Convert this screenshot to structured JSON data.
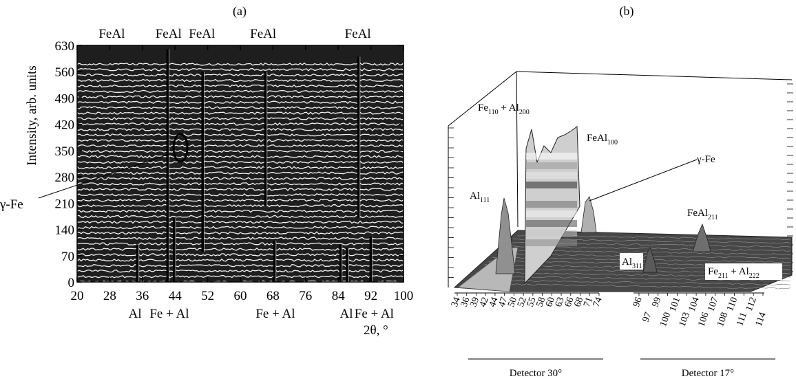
{
  "chart_data": [
    {
      "panel_label": "(a)",
      "type": "line",
      "xlabel": "2θ, °",
      "ylabel": "Intensity, arb. units",
      "xlim": [
        20,
        100
      ],
      "ylim": [
        0,
        630
      ],
      "x_ticks": [
        "20",
        "28",
        "36",
        "44",
        "52",
        "60",
        "68",
        "76",
        "84",
        "92",
        "100"
      ],
      "y_ticks": [
        "0",
        "70",
        "140",
        "210",
        "280",
        "350",
        "420",
        "490",
        "560",
        "630"
      ],
      "series_count": 40,
      "peaks": [
        {
          "x": 34.8,
          "label_bottom": "Al",
          "y_range": [
            0,
            100
          ]
        },
        {
          "x": 42.2,
          "label_bottom": "Fe + Al",
          "y_range": [
            0,
            620
          ],
          "label_top": "FeAl"
        },
        {
          "x": 43.8,
          "y_range": [
            0,
            170
          ]
        },
        {
          "x": 50.8,
          "label_top": "FeAl",
          "y_range": [
            80,
            560
          ]
        },
        {
          "x": 66.2,
          "label_top": "FeAl",
          "y_range": [
            200,
            560
          ]
        },
        {
          "x": 68.4,
          "label_bottom": "Fe + Al",
          "y_range": [
            0,
            110
          ]
        },
        {
          "x": 84.6,
          "y_range": [
            0,
            100
          ]
        },
        {
          "x": 86.2,
          "label_bottom": "Al",
          "y_range": [
            0,
            90
          ]
        },
        {
          "x": 89.0,
          "label_top": "FeAl",
          "y_range": [
            170,
            600
          ]
        },
        {
          "x": 92.0,
          "label_bottom": "Fe + Al",
          "y_range": [
            0,
            120
          ]
        }
      ],
      "top_labels": [
        "FeAl",
        "FeAl",
        "FeAl",
        "FeAl",
        "FeAl"
      ],
      "bottom_labels": [
        "Al",
        "Fe + Al",
        "Fe + Al",
        "Al",
        "Fe + Al"
      ],
      "annotation": "γ-Fe"
    },
    {
      "panel_label": "(b)",
      "type": "area",
      "x_ticks_left": [
        "34",
        "36",
        "39",
        "42",
        "44",
        "47",
        "50",
        "52",
        "55",
        "58",
        "60",
        "63",
        "66",
        "68",
        "71",
        "74"
      ],
      "x_ticks_right": [
        "96",
        "97",
        "99",
        "100",
        "101",
        "103",
        "104",
        "106",
        "107",
        "108",
        "110",
        "111",
        "112",
        "114"
      ],
      "detector_labels": [
        "Detector 30°",
        "Detector 17°"
      ],
      "peak_labels": [
        {
          "text": "Al",
          "sub": "111"
        },
        {
          "text": "Fe",
          "sub": "110",
          "text2": " + Al",
          "sub2": "200"
        },
        {
          "text": "FeAl",
          "sub": "100"
        },
        {
          "text": "γ-Fe"
        },
        {
          "text": "FeAl",
          "sub": "211"
        },
        {
          "text": "Al",
          "sub": "311"
        },
        {
          "text": "Fe",
          "sub": "211",
          "text2": " + Al",
          "sub2": "222"
        }
      ]
    }
  ]
}
